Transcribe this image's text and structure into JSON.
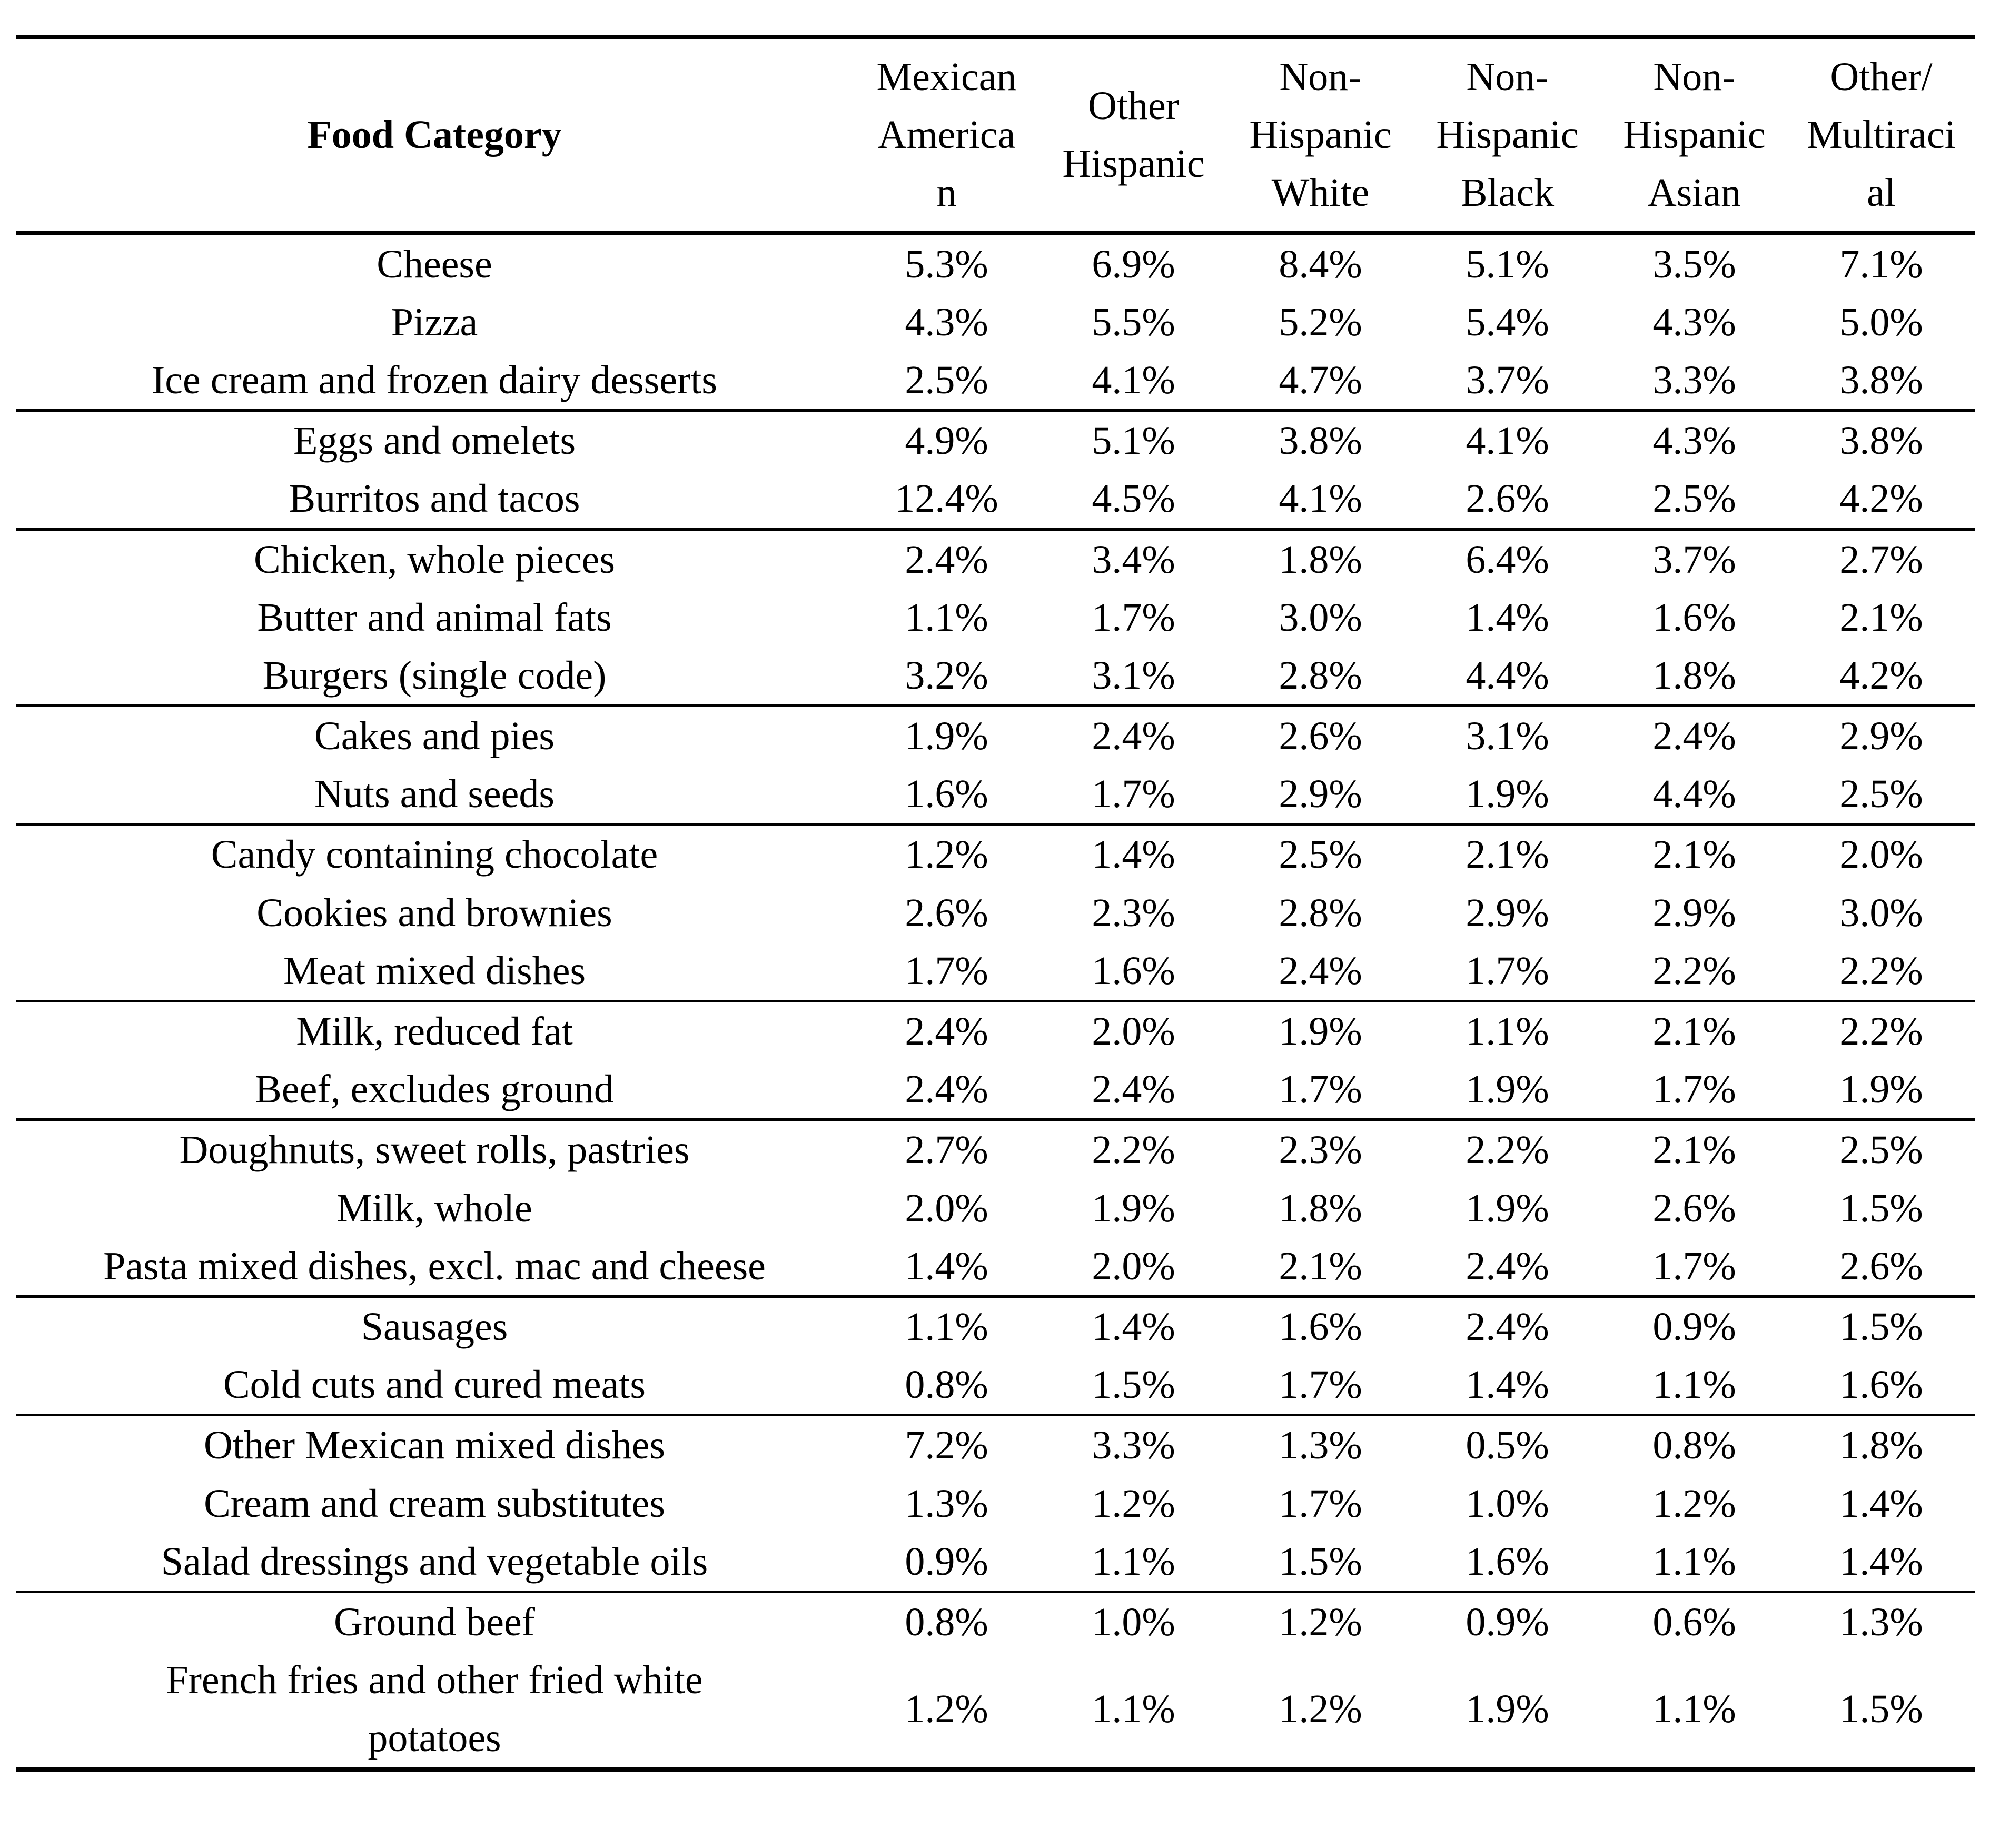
{
  "table": {
    "columns": [
      "Food Category",
      "Mexican\nAmerica\nn",
      "Other\nHispanic",
      "Non-\nHispanic\nWhite",
      "Non-\nHispanic\nBlack",
      "Non-\nHispanic\nAsian",
      "Other/\nMultiraci\nal"
    ],
    "groups": [
      {
        "rows": [
          {
            "label": "Cheese",
            "values": [
              "5.3%",
              "6.9%",
              "8.4%",
              "5.1%",
              "3.5%",
              "7.1%"
            ]
          },
          {
            "label": "Pizza",
            "values": [
              "4.3%",
              "5.5%",
              "5.2%",
              "5.4%",
              "4.3%",
              "5.0%"
            ]
          },
          {
            "label": "Ice cream and frozen dairy desserts",
            "values": [
              "2.5%",
              "4.1%",
              "4.7%",
              "3.7%",
              "3.3%",
              "3.8%"
            ]
          }
        ]
      },
      {
        "rows": [
          {
            "label": "Eggs and omelets",
            "values": [
              "4.9%",
              "5.1%",
              "3.8%",
              "4.1%",
              "4.3%",
              "3.8%"
            ]
          },
          {
            "label": "Burritos and tacos",
            "values": [
              "12.4%",
              "4.5%",
              "4.1%",
              "2.6%",
              "2.5%",
              "4.2%"
            ]
          }
        ]
      },
      {
        "rows": [
          {
            "label": "Chicken, whole pieces",
            "values": [
              "2.4%",
              "3.4%",
              "1.8%",
              "6.4%",
              "3.7%",
              "2.7%"
            ]
          },
          {
            "label": "Butter and animal fats",
            "values": [
              "1.1%",
              "1.7%",
              "3.0%",
              "1.4%",
              "1.6%",
              "2.1%"
            ]
          },
          {
            "label": "Burgers (single code)",
            "values": [
              "3.2%",
              "3.1%",
              "2.8%",
              "4.4%",
              "1.8%",
              "4.2%"
            ]
          }
        ]
      },
      {
        "rows": [
          {
            "label": "Cakes and pies",
            "values": [
              "1.9%",
              "2.4%",
              "2.6%",
              "3.1%",
              "2.4%",
              "2.9%"
            ]
          },
          {
            "label": "Nuts and seeds",
            "values": [
              "1.6%",
              "1.7%",
              "2.9%",
              "1.9%",
              "4.4%",
              "2.5%"
            ]
          }
        ]
      },
      {
        "rows": [
          {
            "label": "Candy containing chocolate",
            "values": [
              "1.2%",
              "1.4%",
              "2.5%",
              "2.1%",
              "2.1%",
              "2.0%"
            ]
          },
          {
            "label": "Cookies and brownies",
            "values": [
              "2.6%",
              "2.3%",
              "2.8%",
              "2.9%",
              "2.9%",
              "3.0%"
            ]
          },
          {
            "label": "Meat mixed dishes",
            "values": [
              "1.7%",
              "1.6%",
              "2.4%",
              "1.7%",
              "2.2%",
              "2.2%"
            ]
          }
        ]
      },
      {
        "rows": [
          {
            "label": "Milk, reduced fat",
            "values": [
              "2.4%",
              "2.0%",
              "1.9%",
              "1.1%",
              "2.1%",
              "2.2%"
            ]
          },
          {
            "label": "Beef, excludes ground",
            "values": [
              "2.4%",
              "2.4%",
              "1.7%",
              "1.9%",
              "1.7%",
              "1.9%"
            ]
          }
        ]
      },
      {
        "rows": [
          {
            "label": "Doughnuts, sweet rolls, pastries",
            "values": [
              "2.7%",
              "2.2%",
              "2.3%",
              "2.2%",
              "2.1%",
              "2.5%"
            ]
          },
          {
            "label": "Milk, whole",
            "values": [
              "2.0%",
              "1.9%",
              "1.8%",
              "1.9%",
              "2.6%",
              "1.5%"
            ]
          },
          {
            "label": "Pasta mixed dishes, excl. mac and cheese",
            "values": [
              "1.4%",
              "2.0%",
              "2.1%",
              "2.4%",
              "1.7%",
              "2.6%"
            ]
          }
        ]
      },
      {
        "rows": [
          {
            "label": "Sausages",
            "values": [
              "1.1%",
              "1.4%",
              "1.6%",
              "2.4%",
              "0.9%",
              "1.5%"
            ]
          },
          {
            "label": "Cold cuts and cured meats",
            "values": [
              "0.8%",
              "1.5%",
              "1.7%",
              "1.4%",
              "1.1%",
              "1.6%"
            ]
          }
        ]
      },
      {
        "rows": [
          {
            "label": "Other Mexican mixed dishes",
            "values": [
              "7.2%",
              "3.3%",
              "1.3%",
              "0.5%",
              "0.8%",
              "1.8%"
            ]
          },
          {
            "label": "Cream and cream substitutes",
            "values": [
              "1.3%",
              "1.2%",
              "1.7%",
              "1.0%",
              "1.2%",
              "1.4%"
            ]
          },
          {
            "label": "Salad dressings and vegetable oils",
            "values": [
              "0.9%",
              "1.1%",
              "1.5%",
              "1.6%",
              "1.1%",
              "1.4%"
            ]
          }
        ]
      },
      {
        "rows": [
          {
            "label": "Ground beef",
            "values": [
              "0.8%",
              "1.0%",
              "1.2%",
              "0.9%",
              "0.6%",
              "1.3%"
            ]
          },
          {
            "label": "French fries and other fried white\npotatoes",
            "values": [
              "1.2%",
              "1.1%",
              "1.2%",
              "1.9%",
              "1.1%",
              "1.5%"
            ]
          }
        ]
      }
    ]
  }
}
